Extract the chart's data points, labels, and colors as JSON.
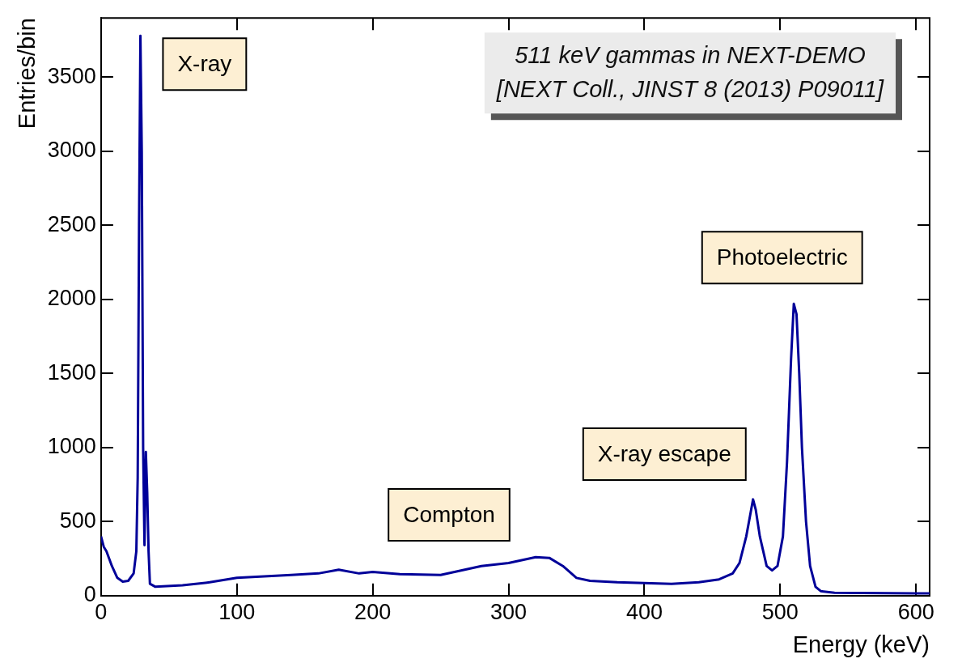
{
  "chart_data": {
    "type": "line",
    "title": "511 keV gammas in NEXT-DEMO",
    "subtitle": "[NEXT Coll., JINST 8 (2013) P09011]",
    "xlabel": "Energy (keV)",
    "ylabel": "Entries/bin",
    "xlim": [
      0,
      610
    ],
    "ylim": [
      0,
      3900
    ],
    "xticks": [
      0,
      100,
      200,
      300,
      400,
      500,
      600
    ],
    "yticks": [
      0,
      500,
      1000,
      1500,
      2000,
      2500,
      3000,
      3500
    ],
    "series": [
      {
        "color": "#000099",
        "x": [
          0,
          2,
          4,
          8,
          12,
          16,
          20,
          24,
          26,
          27,
          28,
          29,
          30,
          31,
          32,
          33,
          34,
          35,
          36,
          40,
          60,
          80,
          100,
          120,
          140,
          160,
          175,
          190,
          200,
          220,
          250,
          280,
          300,
          320,
          330,
          340,
          350,
          360,
          380,
          400,
          420,
          440,
          455,
          465,
          470,
          475,
          478,
          480,
          482,
          485,
          490,
          494,
          498,
          502,
          505,
          508,
          510,
          512,
          514,
          516,
          519,
          522,
          526,
          530,
          540,
          600,
          610
        ],
        "values": [
          400,
          330,
          300,
          200,
          120,
          95,
          100,
          150,
          300,
          800,
          2500,
          3780,
          3000,
          1000,
          340,
          970,
          700,
          300,
          80,
          60,
          70,
          90,
          120,
          130,
          140,
          150,
          175,
          150,
          160,
          145,
          140,
          200,
          220,
          260,
          255,
          200,
          120,
          100,
          90,
          85,
          80,
          90,
          110,
          150,
          220,
          400,
          550,
          650,
          580,
          400,
          200,
          170,
          200,
          400,
          900,
          1600,
          1970,
          1900,
          1500,
          1000,
          500,
          200,
          60,
          30,
          20,
          15,
          15
        ]
      }
    ],
    "annotations": [
      "X-ray",
      "Compton",
      "X-ray escape",
      "Photoelectric"
    ],
    "grid": false,
    "legend": false,
    "marker": "none",
    "line_style": "solid"
  }
}
